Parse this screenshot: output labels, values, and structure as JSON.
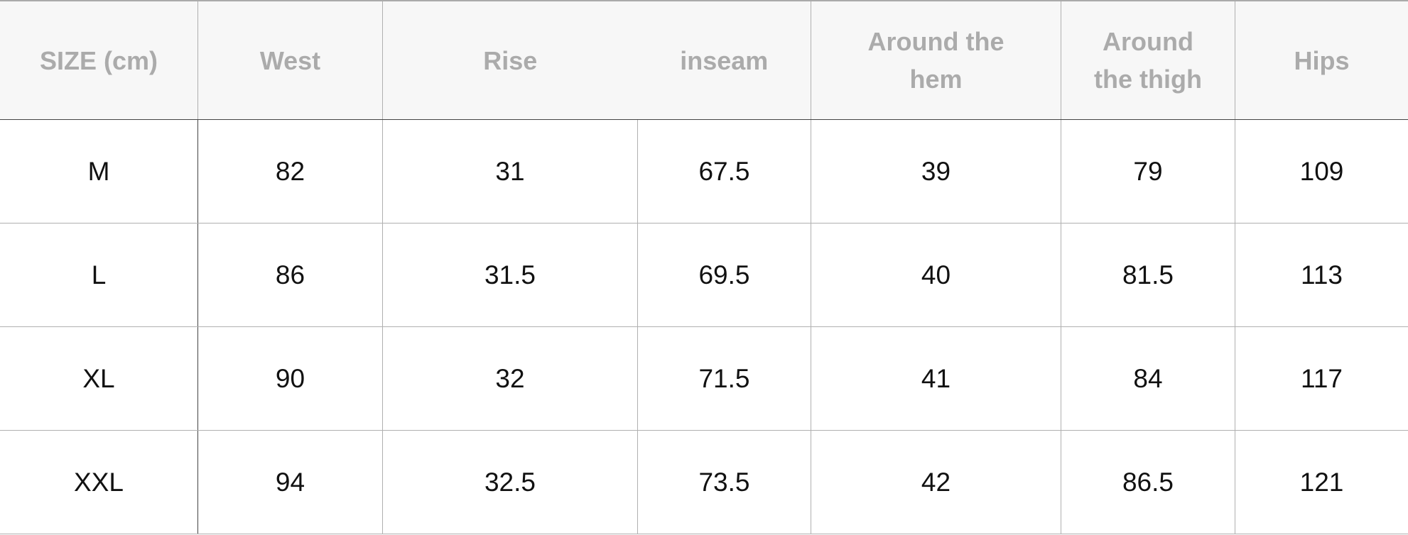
{
  "table": {
    "headers": [
      "SIZE (cm)",
      "West",
      "Rise",
      "inseam",
      "Around the hem",
      "Around the thigh",
      "Hips"
    ],
    "rows": [
      [
        "M",
        "82",
        "31",
        "67.5",
        "39",
        "79",
        "109"
      ],
      [
        "L",
        "86",
        "31.5",
        "69.5",
        "40",
        "81.5",
        "113"
      ],
      [
        "XL",
        "90",
        "32",
        "71.5",
        "41",
        "84",
        "117"
      ],
      [
        "XXL",
        "94",
        "32.5",
        "73.5",
        "42",
        "86.5",
        "121"
      ]
    ]
  }
}
